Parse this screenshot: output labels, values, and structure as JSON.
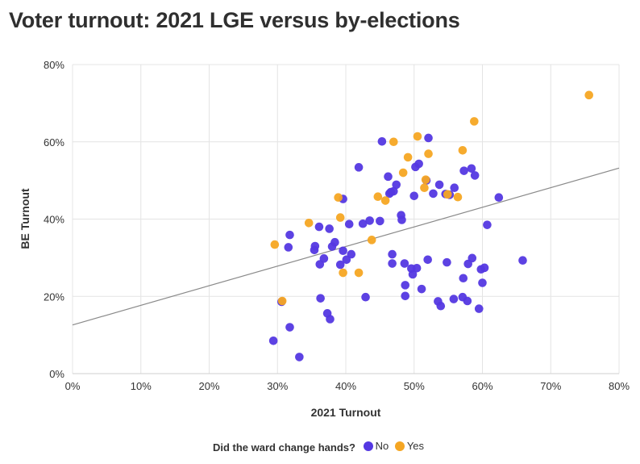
{
  "title": "Voter turnout: 2021 LGE versus by-elections",
  "legend": {
    "title": "Did the ward change hands?",
    "items": [
      {
        "label": "No",
        "color": "#5438e2"
      },
      {
        "label": "Yes",
        "color": "#f5a623"
      }
    ]
  },
  "chart_data": {
    "type": "scatter",
    "xlabel": "2021 Turnout",
    "ylabel": "BE Turnout",
    "xlim": [
      0,
      80
    ],
    "ylim": [
      0,
      80
    ],
    "x_ticks": [
      "0%",
      "10%",
      "20%",
      "30%",
      "40%",
      "50%",
      "60%",
      "70%",
      "80%"
    ],
    "y_ticks": [
      "0%",
      "20%",
      "40%",
      "60%",
      "80%"
    ],
    "grid": true,
    "legend_position": "bottom",
    "trendline": {
      "x": [
        0,
        80
      ],
      "y": [
        12.6,
        53.2
      ]
    },
    "series": [
      {
        "name": "No",
        "color": "#5438e2",
        "points": [
          [
            29.4,
            8.5
          ],
          [
            30.6,
            18.6
          ],
          [
            31.6,
            32.7
          ],
          [
            31.8,
            35.9
          ],
          [
            31.8,
            12.0
          ],
          [
            33.2,
            4.3
          ],
          [
            35.4,
            32.0
          ],
          [
            35.5,
            33.0
          ],
          [
            36.1,
            38.0
          ],
          [
            36.2,
            28.3
          ],
          [
            36.3,
            19.5
          ],
          [
            36.8,
            29.8
          ],
          [
            37.3,
            15.6
          ],
          [
            37.6,
            37.5
          ],
          [
            37.7,
            14.1
          ],
          [
            38.0,
            32.9
          ],
          [
            38.4,
            34.0
          ],
          [
            39.2,
            28.2
          ],
          [
            39.6,
            31.8
          ],
          [
            39.6,
            45.2
          ],
          [
            40.1,
            29.5
          ],
          [
            40.5,
            38.7
          ],
          [
            40.8,
            30.9
          ],
          [
            41.9,
            53.4
          ],
          [
            42.5,
            38.8
          ],
          [
            42.9,
            19.8
          ],
          [
            43.5,
            39.6
          ],
          [
            45.0,
            39.5
          ],
          [
            45.3,
            60.1
          ],
          [
            46.2,
            51.0
          ],
          [
            46.4,
            46.6
          ],
          [
            46.6,
            47.0
          ],
          [
            46.8,
            30.9
          ],
          [
            46.8,
            28.5
          ],
          [
            47.0,
            47.2
          ],
          [
            47.4,
            48.9
          ],
          [
            48.1,
            41.0
          ],
          [
            48.2,
            39.8
          ],
          [
            48.6,
            28.5
          ],
          [
            48.7,
            22.9
          ],
          [
            48.7,
            20.1
          ],
          [
            49.6,
            27.2
          ],
          [
            49.8,
            25.7
          ],
          [
            50.0,
            46.0
          ],
          [
            50.2,
            53.5
          ],
          [
            50.4,
            27.3
          ],
          [
            50.7,
            54.3
          ],
          [
            51.1,
            21.9
          ],
          [
            51.8,
            50.0
          ],
          [
            52.0,
            29.5
          ],
          [
            52.1,
            61.0
          ],
          [
            52.8,
            46.6
          ],
          [
            53.5,
            18.7
          ],
          [
            53.7,
            48.9
          ],
          [
            53.9,
            17.5
          ],
          [
            54.6,
            46.5
          ],
          [
            54.8,
            28.8
          ],
          [
            55.2,
            46.3
          ],
          [
            55.8,
            19.3
          ],
          [
            55.9,
            48.1
          ],
          [
            57.1,
            19.8
          ],
          [
            57.2,
            24.7
          ],
          [
            57.3,
            52.5
          ],
          [
            57.8,
            18.8
          ],
          [
            57.9,
            28.4
          ],
          [
            58.4,
            53.1
          ],
          [
            58.5,
            29.9
          ],
          [
            58.9,
            51.3
          ],
          [
            59.5,
            16.8
          ],
          [
            59.8,
            27.0
          ],
          [
            60.0,
            23.5
          ],
          [
            60.3,
            27.4
          ],
          [
            60.7,
            38.5
          ],
          [
            62.4,
            45.6
          ],
          [
            65.9,
            29.3
          ]
        ]
      },
      {
        "name": "Yes",
        "color": "#f5a623",
        "points": [
          [
            29.6,
            33.4
          ],
          [
            30.7,
            18.8
          ],
          [
            34.6,
            39.0
          ],
          [
            38.9,
            45.6
          ],
          [
            39.2,
            40.4
          ],
          [
            39.6,
            26.1
          ],
          [
            41.9,
            26.1
          ],
          [
            43.8,
            34.6
          ],
          [
            44.7,
            45.8
          ],
          [
            45.8,
            44.8
          ],
          [
            47.0,
            60.0
          ],
          [
            48.4,
            52.0
          ],
          [
            49.1,
            56.0
          ],
          [
            50.5,
            61.4
          ],
          [
            51.5,
            48.1
          ],
          [
            51.7,
            50.2
          ],
          [
            52.1,
            56.9
          ],
          [
            54.9,
            46.4
          ],
          [
            56.4,
            45.7
          ],
          [
            57.1,
            57.8
          ],
          [
            58.8,
            65.3
          ],
          [
            75.6,
            72.1
          ]
        ]
      }
    ]
  }
}
